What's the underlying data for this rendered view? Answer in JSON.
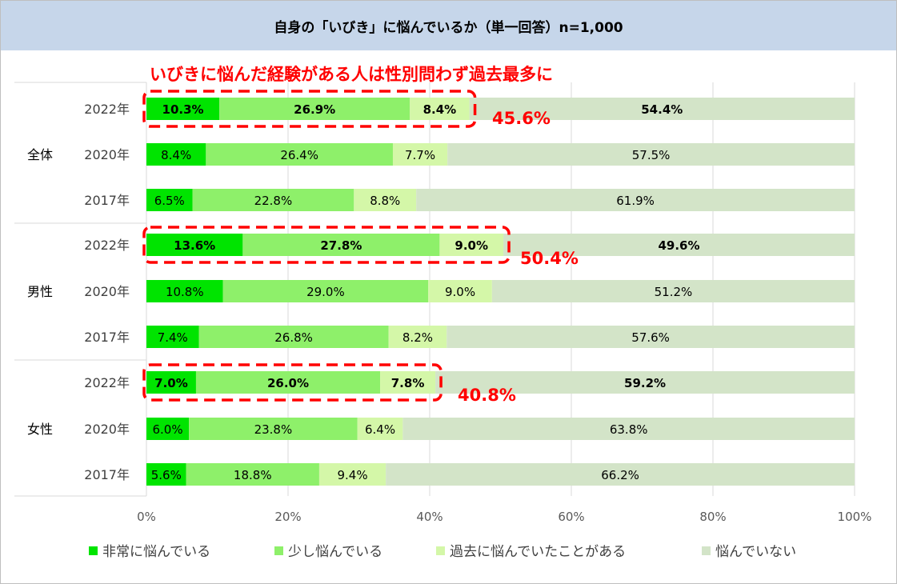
{
  "header": {
    "title": "自身の「いびき」に悩んでいるか（単一回答）n=1,000"
  },
  "chart_data": {
    "type": "bar",
    "stacked": true,
    "orientation": "horizontal",
    "title": "自身の「いびき」に悩んでいるか（単一回答）n=1,000",
    "annotation": "いびきに悩んだ経験がある人は性別問わず過去最多に",
    "groups": [
      {
        "name": "全体",
        "rows": [
          {
            "year": "2022年",
            "values": [
              10.3,
              26.9,
              8.4,
              54.4
            ],
            "labels": [
              "10.3%",
              "26.9%",
              "8.4%",
              "54.4%"
            ],
            "highlight": true,
            "total": "45.6%"
          },
          {
            "year": "2020年",
            "values": [
              8.4,
              26.4,
              7.7,
              57.5
            ],
            "labels": [
              "8.4%",
              "26.4%",
              "7.7%",
              "57.5%"
            ]
          },
          {
            "year": "2017年",
            "values": [
              6.5,
              22.8,
              8.8,
              61.9
            ],
            "labels": [
              "6.5%",
              "22.8%",
              "8.8%",
              "61.9%"
            ]
          }
        ]
      },
      {
        "name": "男性",
        "rows": [
          {
            "year": "2022年",
            "values": [
              13.6,
              27.8,
              9.0,
              49.6
            ],
            "labels": [
              "13.6%",
              "27.8%",
              "9.0%",
              "49.6%"
            ],
            "highlight": true,
            "total": "50.4%"
          },
          {
            "year": "2020年",
            "values": [
              10.8,
              29.0,
              9.0,
              51.2
            ],
            "labels": [
              "10.8%",
              "29.0%",
              "9.0%",
              "51.2%"
            ]
          },
          {
            "year": "2017年",
            "values": [
              7.4,
              26.8,
              8.2,
              57.6
            ],
            "labels": [
              "7.4%",
              "26.8%",
              "8.2%",
              "57.6%"
            ]
          }
        ]
      },
      {
        "name": "女性",
        "rows": [
          {
            "year": "2022年",
            "values": [
              7.0,
              26.0,
              7.8,
              59.2
            ],
            "labels": [
              "7.0%",
              "26.0%",
              "7.8%",
              "59.2%"
            ],
            "highlight": true,
            "total": "40.8%"
          },
          {
            "year": "2020年",
            "values": [
              6.0,
              23.8,
              6.4,
              63.8
            ],
            "labels": [
              "6.0%",
              "23.8%",
              "6.4%",
              "63.8%"
            ]
          },
          {
            "year": "2017年",
            "values": [
              5.6,
              18.8,
              9.4,
              66.2
            ],
            "labels": [
              "5.6%",
              "18.8%",
              "9.4%",
              "66.2%"
            ]
          }
        ]
      }
    ],
    "series": [
      {
        "name": "非常に悩んでいる",
        "color": "#00e400"
      },
      {
        "name": "少し悩んでいる",
        "color": "#8ef06a"
      },
      {
        "name": "過去に悩んでいたことがある",
        "color": "#d4f7a8"
      },
      {
        "name": "悩んでいない",
        "color": "#d3e4c8"
      }
    ],
    "xlim": [
      0,
      100
    ],
    "xticks": [
      "0%",
      "20%",
      "40%",
      "60%",
      "80%",
      "100%"
    ],
    "grid": true,
    "legend_position": "bottom",
    "highlight_color": "#ff0000"
  }
}
